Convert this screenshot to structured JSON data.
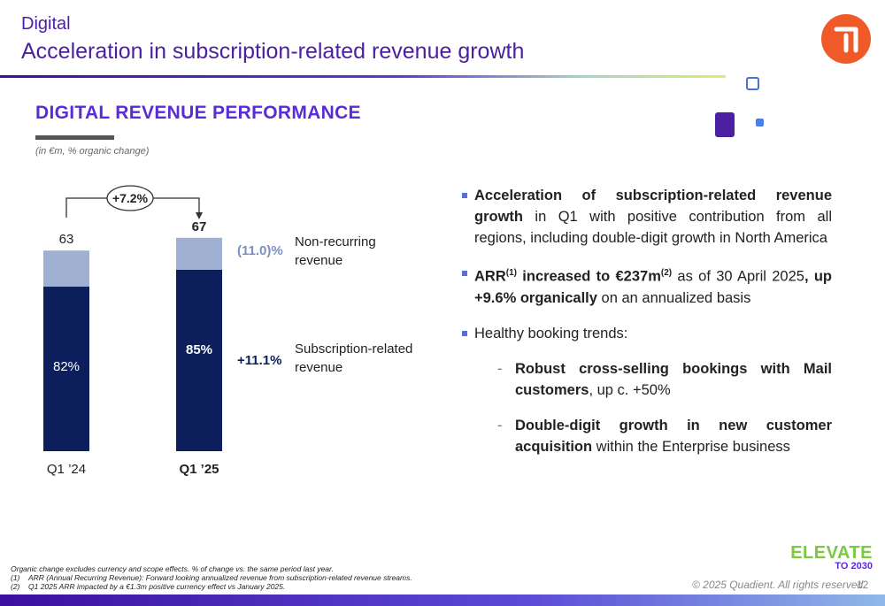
{
  "header": {
    "section": "Digital",
    "title": "Acceleration in subscription-related revenue growth"
  },
  "panel": {
    "heading": "DIGITAL REVENUE PERFORMANCE",
    "units_note": "(in €m, % organic change)"
  },
  "chart_data": {
    "type": "bar",
    "stacked": true,
    "categories": [
      "Q1 ’24",
      "Q1 ’25"
    ],
    "totals": [
      63,
      67
    ],
    "series": [
      {
        "name": "Subscription-related revenue",
        "shares": [
          "82%",
          "85%"
        ],
        "share_values": [
          0.82,
          0.85
        ],
        "growth": "+11.1%",
        "color": "#0c1f5c"
      },
      {
        "name": "Non-recurring revenue",
        "shares": [
          "",
          ""
        ],
        "share_values": [
          0.18,
          0.15
        ],
        "growth": "(11.0)%",
        "color": "#9fb0d3"
      }
    ],
    "growth_annotation": "+7.2%",
    "ylim": [
      0,
      80
    ]
  },
  "legend": {
    "non_recurring": [
      "Non-recurring",
      "revenue"
    ],
    "subscription": [
      "Subscription-related",
      "revenue"
    ]
  },
  "bullets": {
    "b1_bold": "Acceleration of subscription-related revenue growth",
    "b1_rest": " in Q1 with positive contribution from all regions, including double-digit growth in North America",
    "b2_a": "ARR",
    "b2_sup1": "(1)",
    "b2_b": " increased to €237m",
    "b2_sup2": "(2)",
    "b2_c": " as of 30 April 2025",
    "b2_d": ",  up +9.6% organically",
    "b2_e": " on an annualized basis",
    "b3": "Healthy booking trends:",
    "s1_bold": "Robust cross-selling bookings with Mail customers",
    "s1_rest": ", up c. +50%",
    "s2_bold": "Double-digit growth in new customer acquisition",
    "s2_rest": " within the Enterprise business",
    "dash": "-"
  },
  "footnotes": {
    "line0": "Organic change excludes currency and scope effects. % of change vs. the same period last year.",
    "n1": "(1)",
    "line1": "ARR (Annual Recurring Revenue): Forward looking annualized revenue from subscription-related revenue streams.",
    "n2": "(2)",
    "line2": "Q1 2025 ARR impacted by a €1.3m positive currency effect vs January 2025."
  },
  "footer": {
    "copyright": "© 2025 Quadient. All rights reserved.",
    "page": "12",
    "brand_line1": "ELEVATE",
    "brand_line2": "TO 2030"
  },
  "colors": {
    "accent": "#4b1fa0",
    "heading": "#5b2bd6",
    "logo": "#f05a28",
    "subscription_growth": "#0c1f5c",
    "non_recurring_growth": "#7b8fc4"
  }
}
